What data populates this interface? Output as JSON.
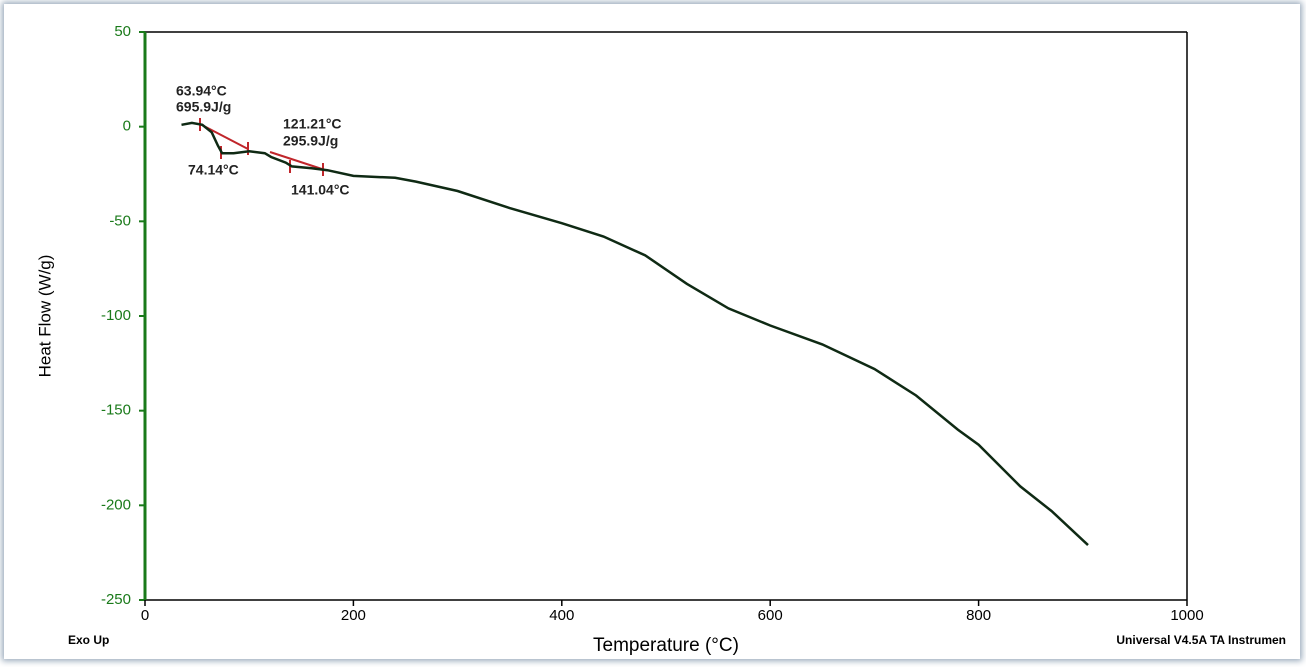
{
  "chart_data": {
    "type": "line",
    "y_label": "Heat Flow (W/g)",
    "x_label": "Temperature (°C)",
    "corner_left": "Exo Up",
    "corner_right": "Universal V4.5A TA Instrumen",
    "annotations": [
      "63.94°C",
      "695.9J/g",
      "121.21°C",
      "295.9J/g",
      "74.14°C",
      "141.04°C"
    ],
    "x": [
      35,
      45,
      55,
      64,
      70,
      74,
      85,
      100,
      115,
      121,
      135,
      141,
      160,
      175,
      200,
      240,
      260,
      300,
      350,
      400,
      440,
      480,
      520,
      560,
      600,
      650,
      700,
      740,
      780,
      800,
      840,
      870,
      905
    ],
    "values": [
      1,
      2,
      1,
      -3,
      -10,
      -14,
      -14,
      -13,
      -14,
      -16,
      -19,
      -21,
      -22,
      -23,
      -26,
      -27,
      -29,
      -34,
      -43,
      -51,
      -58,
      -68,
      -83,
      -96,
      -105,
      -115,
      -128,
      -142,
      -160,
      -168,
      -190,
      -203,
      -221
    ],
    "color": "#0f2a14",
    "axis_color": "#1a7a1a",
    "xlim": [
      0,
      1000
    ],
    "xticks": [
      0,
      200,
      400,
      600,
      800,
      1000
    ],
    "ylim": [
      -250,
      50
    ],
    "yticks": [
      50,
      0,
      -50,
      -100,
      -150,
      -200,
      -250
    ]
  }
}
